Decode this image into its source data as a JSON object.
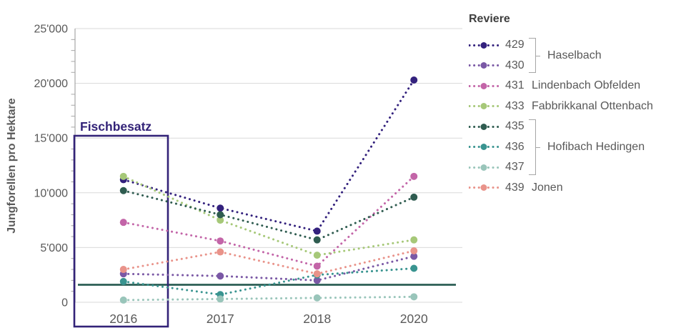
{
  "y_axis_title": "Jungforellen pro Hektare",
  "annotation": {
    "label": "Fischbesatz",
    "color": "#332378"
  },
  "legend": {
    "title": "Reviere",
    "items": [
      {
        "id": "429",
        "inline_name": ""
      },
      {
        "id": "430",
        "inline_name": ""
      },
      {
        "id": "431",
        "inline_name": "Lindenbach Obfelden"
      },
      {
        "id": "433",
        "inline_name": "Fabbrikkanal Ottenbach"
      },
      {
        "id": "435",
        "inline_name": ""
      },
      {
        "id": "436",
        "inline_name": ""
      },
      {
        "id": "437",
        "inline_name": ""
      },
      {
        "id": "439",
        "inline_name": "Jonen"
      }
    ],
    "groups": [
      {
        "label": "Haselbach",
        "start_id": "429",
        "end_id": "430"
      },
      {
        "label": "Hofibach Hedingen",
        "start_id": "435",
        "end_id": "437"
      }
    ]
  },
  "chart_data": {
    "type": "line",
    "line_style": "dotted",
    "categories": [
      "2016",
      "2017",
      "2018",
      "2020"
    ],
    "ylabel": "Jungforellen pro Hektare",
    "ylim": [
      0,
      25000
    ],
    "ytick_step": 5000,
    "ytick_minor_step": 1000,
    "ytick_labels": [
      "0",
      "5'000",
      "10'000",
      "15'000",
      "20'000",
      "25'000"
    ],
    "grid": "horizontal",
    "legend_position": "right",
    "series": [
      {
        "id": "429",
        "name": "Haselbach",
        "color": "#33217d",
        "values": [
          11200,
          8600,
          6500,
          20300
        ]
      },
      {
        "id": "430",
        "name": "Haselbach",
        "color": "#7a58a5",
        "values": [
          2600,
          2400,
          2000,
          4200
        ]
      },
      {
        "id": "431",
        "name": "Lindenbach Obfelden",
        "color": "#c365a8",
        "values": [
          7300,
          5600,
          3300,
          11500
        ]
      },
      {
        "id": "433",
        "name": "Fabbrikkanal Ottenbach",
        "color": "#a6c878",
        "values": [
          11500,
          7500,
          4300,
          5700
        ]
      },
      {
        "id": "435",
        "name": "Hofibach Hedingen",
        "color": "#2f5c50",
        "values": [
          10200,
          8000,
          5700,
          9600
        ]
      },
      {
        "id": "436",
        "name": "Hofibach Hedingen",
        "color": "#399490",
        "values": [
          1900,
          700,
          2500,
          3100
        ]
      },
      {
        "id": "437",
        "name": "Hofibach Hedingen",
        "color": "#99c5ba",
        "values": [
          200,
          300,
          400,
          500
        ]
      },
      {
        "id": "439",
        "name": "Jonen",
        "color": "#e9938a",
        "values": [
          3000,
          4600,
          2600,
          4700
        ]
      }
    ],
    "reference_line": {
      "value": 1600,
      "color": "#2c5e54"
    },
    "annotation_box": {
      "label": "Fischbesatz",
      "category": "2016",
      "color": "#332378"
    }
  }
}
